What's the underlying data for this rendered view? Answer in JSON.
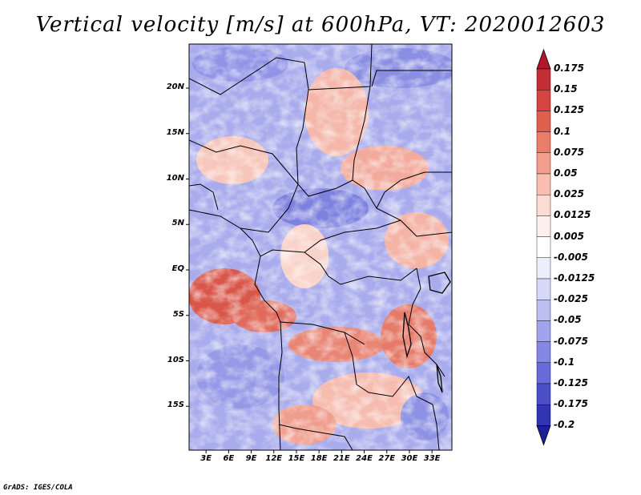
{
  "chart_data": {
    "type": "heatmap",
    "title": "Vertical velocity [m/s] at 600hPa, VT: 2020012603",
    "variable": "Vertical velocity",
    "units": "m/s",
    "level": "600hPa",
    "valid_time": "2020012603",
    "x_ticks": [
      "3E",
      "6E",
      "9E",
      "12E",
      "15E",
      "18E",
      "21E",
      "24E",
      "27E",
      "30E",
      "33E"
    ],
    "y_ticks": [
      "20N",
      "15N",
      "10N",
      "5N",
      "EQ",
      "5S",
      "10S",
      "15S"
    ],
    "colorbar": {
      "levels": [
        "0.175",
        "0.15",
        "0.125",
        "0.1",
        "0.075",
        "0.05",
        "0.025",
        "0.0125",
        "0.005",
        "-0.005",
        "-0.0125",
        "-0.025",
        "-0.05",
        "-0.075",
        "-0.1",
        "-0.125",
        "-0.175",
        "-0.2"
      ],
      "colors": [
        "#b2182b",
        "#c42d34",
        "#d4453f",
        "#e0604f",
        "#ea7d6a",
        "#f29e8c",
        "#f8bfb0",
        "#fbdcd2",
        "#fdf0ec",
        "#ffffff",
        "#eceefc",
        "#d6d8f8",
        "#bcbff2",
        "#a0a4ec",
        "#8488e4",
        "#676cd8",
        "#4a4fc8",
        "#3035b4",
        "#1b1f9a"
      ]
    },
    "legend_position": "right"
  },
  "footer": {
    "credit": "GrADS: IGES/COLA"
  }
}
